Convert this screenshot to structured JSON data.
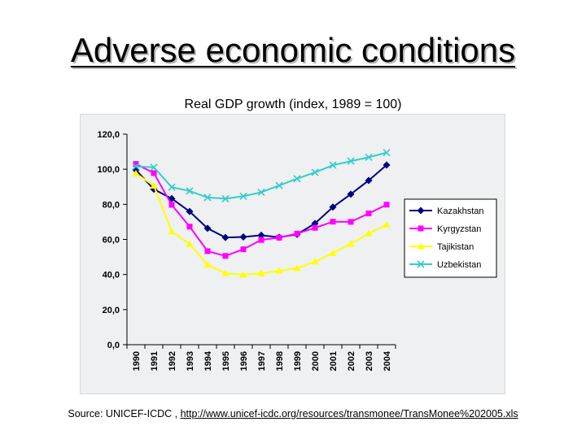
{
  "slide": {
    "title": "Adverse economic conditions",
    "source_prefix": "Source: UNICEF-ICDC , ",
    "source_link": "http://www.unicef-icdc.org/resources/transmonee/TransMonee%202005.xls"
  },
  "chart_data": {
    "type": "line",
    "title": "Real GDP growth (index, 1989 = 100)",
    "xlabel": "",
    "ylabel": "",
    "x": [
      "1990",
      "1991",
      "1992",
      "1993",
      "1994",
      "1995",
      "1996",
      "1997",
      "1998",
      "1999",
      "2000",
      "2001",
      "2002",
      "2003",
      "2004"
    ],
    "ylim": [
      0,
      120
    ],
    "yticks": [
      "0,0",
      "20,0",
      "40,0",
      "60,0",
      "80,0",
      "100,0",
      "120,0"
    ],
    "grid": false,
    "legend": "right",
    "series": [
      {
        "name": "Kazakhstan",
        "color": "#000080",
        "marker": "diamond",
        "values": [
          99.6,
          88.6,
          83.3,
          75.9,
          66.3,
          61.1,
          61.4,
          62.4,
          61.2,
          62.9,
          69.1,
          78.4,
          85.8,
          93.6,
          102.4
        ]
      },
      {
        "name": "Kyrgyzstan",
        "color": "#ff00ff",
        "marker": "square",
        "values": [
          103.0,
          97.8,
          79.7,
          67.3,
          53.3,
          50.6,
          54.4,
          59.7,
          61.0,
          63.3,
          66.6,
          70.1,
          70.0,
          74.8,
          79.8
        ]
      },
      {
        "name": "Tajikistan",
        "color": "#ffff00",
        "marker": "triangle",
        "values": [
          97.6,
          90.6,
          64.6,
          57.3,
          45.6,
          40.7,
          39.9,
          40.6,
          42.1,
          43.6,
          47.3,
          52.2,
          57.5,
          63.4,
          68.4
        ]
      },
      {
        "name": "Uzbekistan",
        "color": "#33cccc",
        "marker": "x",
        "values": [
          101.6,
          101.1,
          89.8,
          87.6,
          83.9,
          83.2,
          84.6,
          86.9,
          90.7,
          94.6,
          98.2,
          102.3,
          104.6,
          106.8,
          109.5
        ]
      }
    ]
  }
}
